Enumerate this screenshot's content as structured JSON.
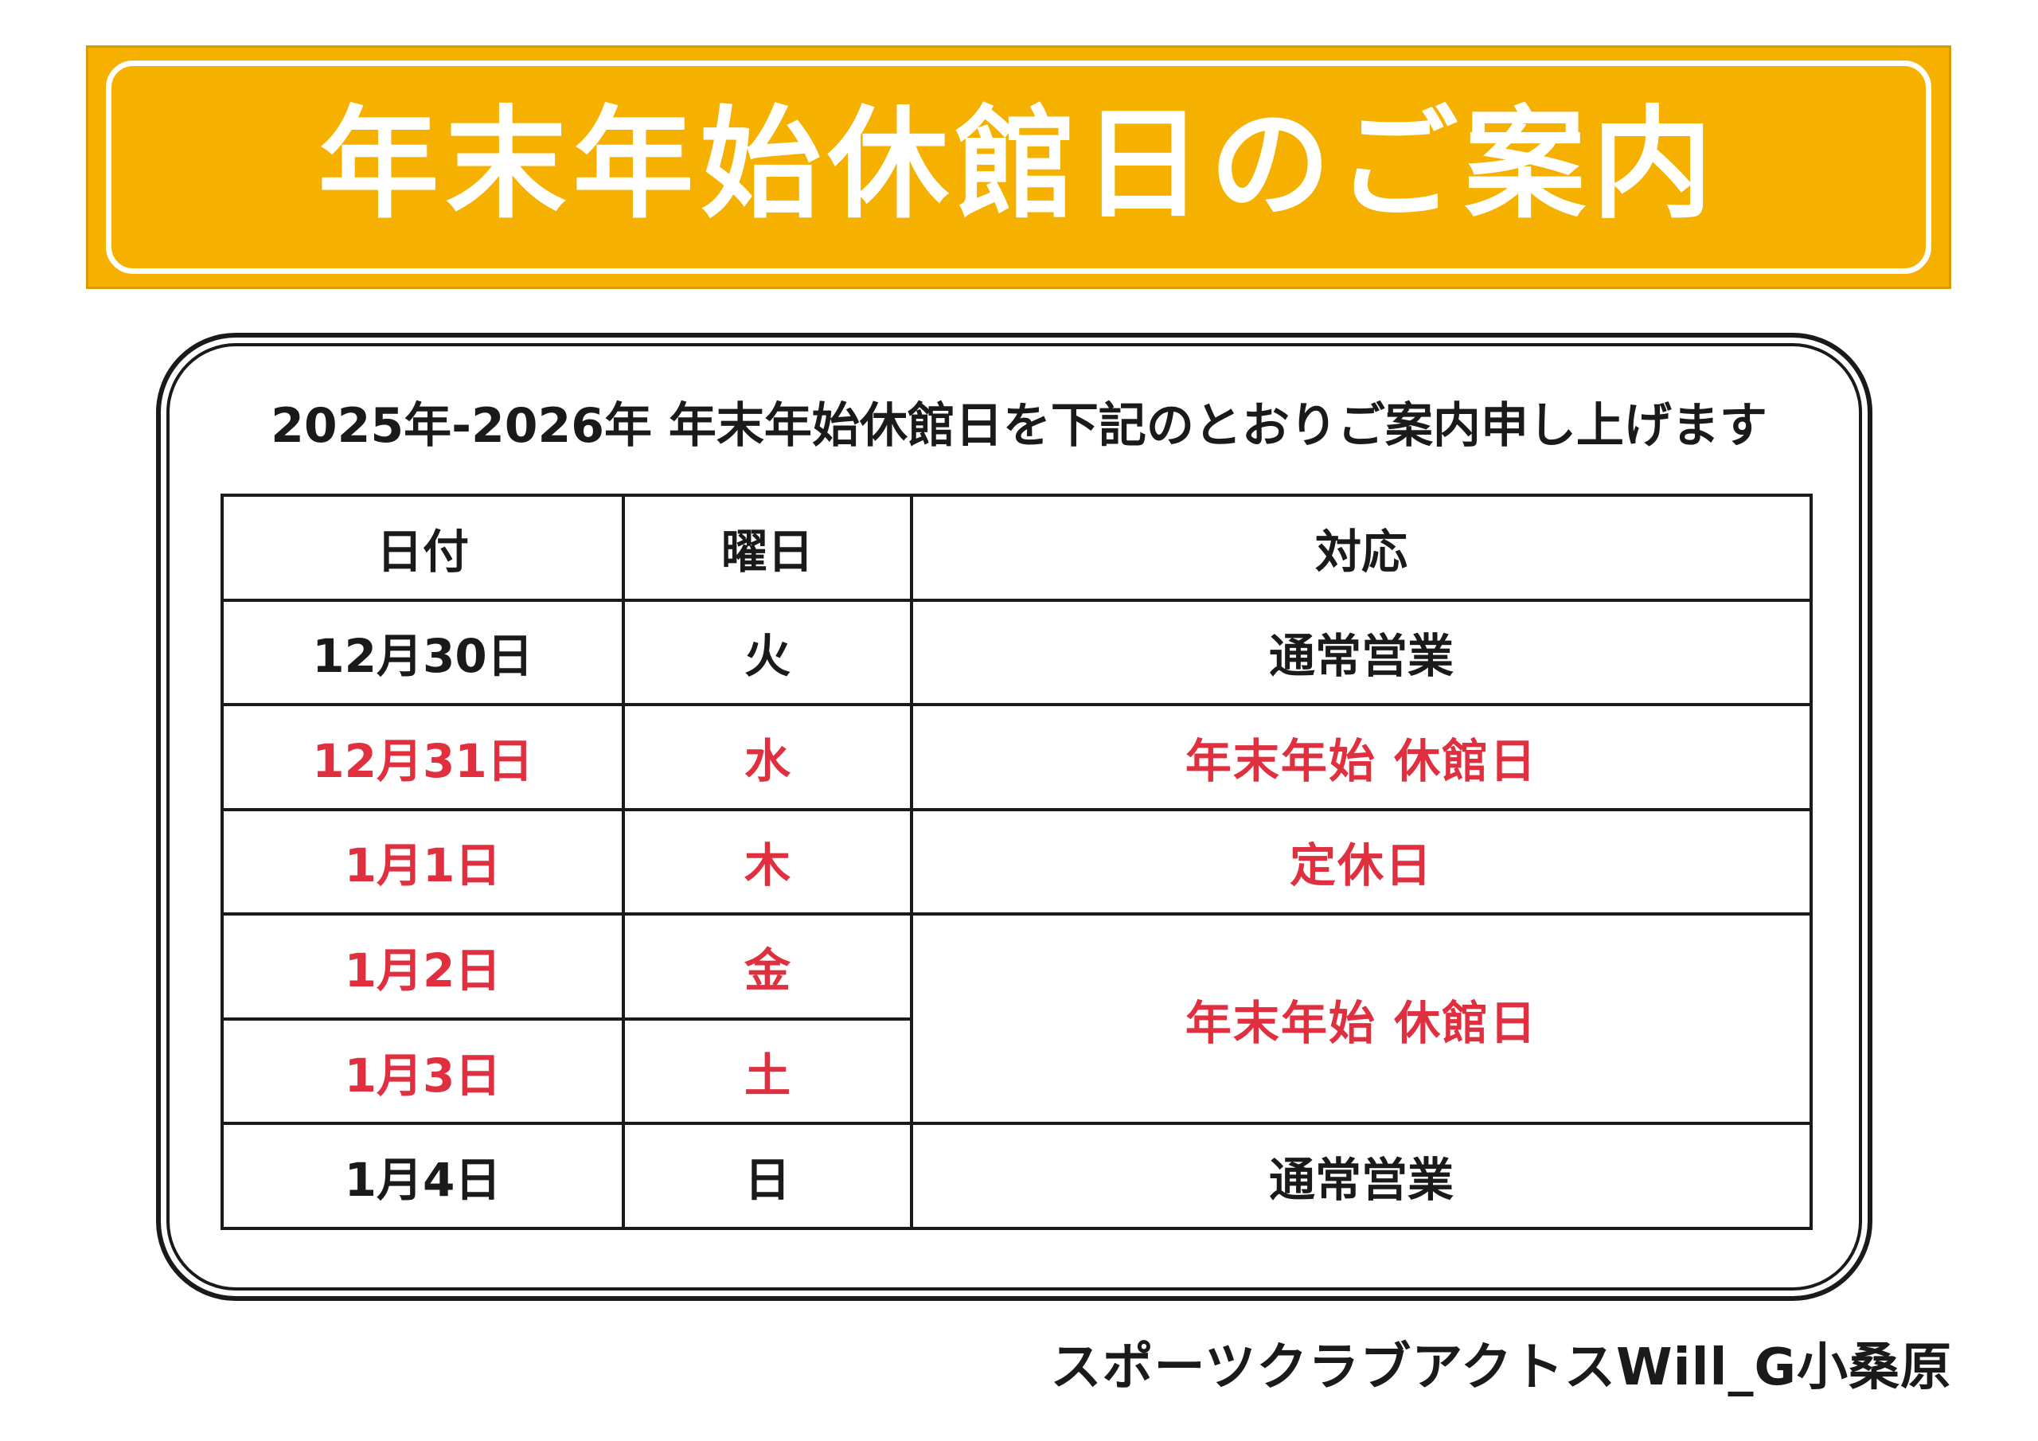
{
  "banner": {
    "title": "年末年始休館日のご案内"
  },
  "notice": {
    "subtitle": "2025年-2026年 年末年始休館日を下記のとおりご案内申し上げます"
  },
  "table": {
    "headers": {
      "date": "日付",
      "weekday": "曜日",
      "status": "対応"
    },
    "rows": [
      {
        "date": "12月30日",
        "weekday": "火",
        "status": "通常営業"
      },
      {
        "date": "12月31日",
        "weekday": "水",
        "status": "年末年始 休館日"
      },
      {
        "date": "1月1日",
        "weekday": "木",
        "status": "定休日"
      },
      {
        "date": "1月2日",
        "weekday": "金",
        "status": "年末年始 休館日"
      },
      {
        "date": "1月3日",
        "weekday": "土",
        "status": ""
      },
      {
        "date": "1月4日",
        "weekday": "日",
        "status": "通常営業"
      }
    ]
  },
  "footer": {
    "organization": "スポーツクラブアクトスWill_G小桑原"
  },
  "colors": {
    "banner": "#f6b100",
    "closed_text": "#e03040",
    "text": "#1a1a1a"
  }
}
